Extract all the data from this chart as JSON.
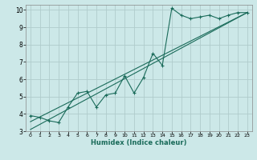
{
  "title": "",
  "xlabel": "Humidex (Indice chaleur)",
  "bg_color": "#cce8e8",
  "grid_color": "#b0cccc",
  "line_color": "#1a6b5a",
  "xlim": [
    -0.5,
    23.5
  ],
  "ylim": [
    3,
    10.3
  ],
  "xticks": [
    0,
    1,
    2,
    3,
    4,
    5,
    6,
    7,
    8,
    9,
    10,
    11,
    12,
    13,
    14,
    15,
    16,
    17,
    18,
    19,
    20,
    21,
    22,
    23
  ],
  "yticks": [
    3,
    4,
    5,
    6,
    7,
    8,
    9,
    10
  ],
  "line1_x": [
    0,
    1,
    2,
    3,
    4,
    5,
    6,
    7,
    8,
    9,
    10,
    11,
    12,
    13,
    14,
    15,
    16,
    17,
    18,
    19,
    20,
    21,
    22,
    23
  ],
  "line1_y": [
    3.9,
    3.8,
    3.6,
    3.5,
    4.4,
    5.2,
    5.3,
    4.4,
    5.1,
    5.2,
    6.2,
    5.2,
    6.1,
    7.5,
    6.8,
    10.1,
    9.7,
    9.5,
    9.6,
    9.7,
    9.5,
    9.7,
    9.85,
    9.85
  ],
  "line2_x": [
    0,
    23
  ],
  "line2_y": [
    3.55,
    9.85
  ],
  "line3_x": [
    0,
    23
  ],
  "line3_y": [
    3.1,
    9.85
  ]
}
